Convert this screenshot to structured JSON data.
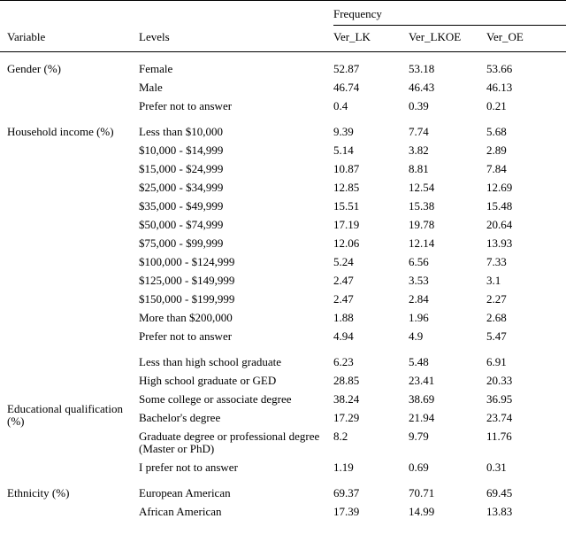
{
  "table": {
    "spanner": "Frequency",
    "columns": [
      "Variable",
      "Levels",
      "Ver_LK",
      "Ver_LKOE",
      "Ver_OE"
    ],
    "groups": [
      {
        "variable": "Gender (%)",
        "rows": [
          {
            "level": "Female",
            "values": [
              "52.87",
              "53.18",
              "53.66"
            ]
          },
          {
            "level": "Male",
            "values": [
              "46.74",
              "46.43",
              "46.13"
            ]
          },
          {
            "level": "Prefer not to answer",
            "values": [
              "0.4",
              "0.39",
              "0.21"
            ]
          }
        ]
      },
      {
        "variable": "Household income (%)",
        "rows": [
          {
            "level": "Less than $10,000",
            "values": [
              "9.39",
              "7.74",
              "5.68"
            ]
          },
          {
            "level": "$10,000 - $14,999",
            "values": [
              "5.14",
              "3.82",
              "2.89"
            ]
          },
          {
            "level": "$15,000 - $24,999",
            "values": [
              "10.87",
              "8.81",
              "7.84"
            ]
          },
          {
            "level": "$25,000 - $34,999",
            "values": [
              "12.85",
              "12.54",
              "12.69"
            ]
          },
          {
            "level": "$35,000 - $49,999",
            "values": [
              "15.51",
              "15.38",
              "15.48"
            ]
          },
          {
            "level": "$50,000 - $74,999",
            "values": [
              "17.19",
              "19.78",
              "20.64"
            ]
          },
          {
            "level": "$75,000 - $99,999",
            "values": [
              "12.06",
              "12.14",
              "13.93"
            ]
          },
          {
            "level": "$100,000 - $124,999",
            "values": [
              "5.24",
              "6.56",
              "7.33"
            ]
          },
          {
            "level": "$125,000 - $149,999",
            "values": [
              "2.47",
              "3.53",
              "3.1"
            ]
          },
          {
            "level": "$150,000 - $199,999",
            "values": [
              "2.47",
              "2.84",
              "2.27"
            ]
          },
          {
            "level": "More than $200,000",
            "values": [
              "1.88",
              "1.96",
              "2.68"
            ]
          },
          {
            "level": "Prefer not to answer",
            "values": [
              "4.94",
              "4.9",
              "5.47"
            ]
          }
        ]
      },
      {
        "variable": "Educational qualification (%)",
        "rows": [
          {
            "level": "Less than high school graduate",
            "values": [
              "6.23",
              "5.48",
              "6.91"
            ]
          },
          {
            "level": "High school graduate or GED",
            "values": [
              "28.85",
              "23.41",
              "20.33"
            ]
          },
          {
            "level": "Some college or associate degree",
            "values": [
              "38.24",
              "38.69",
              "36.95"
            ]
          },
          {
            "level": "Bachelor's degree",
            "values": [
              "17.29",
              "21.94",
              "23.74"
            ]
          },
          {
            "level": "Graduate degree or professional degree (Master or PhD)",
            "values": [
              "8.2",
              "9.79",
              "11.76"
            ]
          },
          {
            "level": "I prefer not to answer",
            "values": [
              "1.19",
              "0.69",
              "0.31"
            ]
          }
        ]
      },
      {
        "variable": "Ethnicity (%)",
        "rows": [
          {
            "level": "European American",
            "values": [
              "69.37",
              "70.71",
              "69.45"
            ]
          },
          {
            "level": "African American",
            "values": [
              "17.39",
              "14.99",
              "13.83"
            ]
          }
        ]
      }
    ]
  }
}
